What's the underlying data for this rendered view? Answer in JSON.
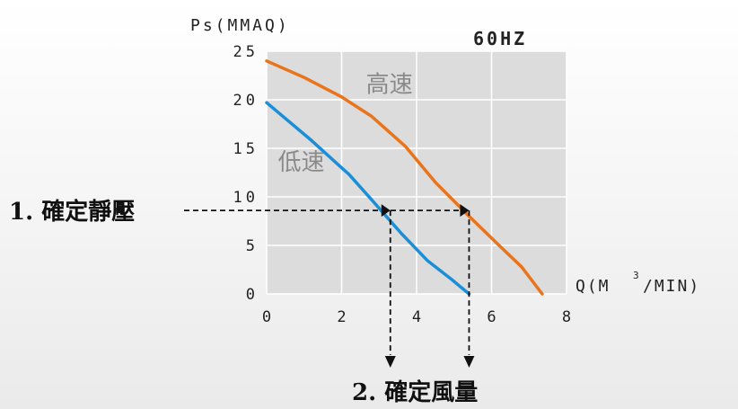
{
  "chart_data": {
    "type": "line",
    "ylabel": "Ps(MMAQ)",
    "xlabel": "Q(M³/MIN)",
    "xlabel_base": "Q(M",
    "xlabel_sup": "3",
    "xlabel_tail": "/MIN)",
    "frequency": "60HZ",
    "xlim": [
      0,
      8
    ],
    "ylim": [
      0,
      25
    ],
    "x_ticks": [
      "0",
      "2",
      "4",
      "6",
      "8"
    ],
    "y_ticks": [
      "0",
      "5",
      "10",
      "15",
      "20",
      "25"
    ],
    "grid": true,
    "series": [
      {
        "name": "高速",
        "color": "#e8741c",
        "points": [
          [
            0,
            24
          ],
          [
            1,
            22.3
          ],
          [
            2,
            20.3
          ],
          [
            2.8,
            18.3
          ],
          [
            3.7,
            15.2
          ],
          [
            4.5,
            11.5
          ],
          [
            5.4,
            8
          ],
          [
            6.2,
            5
          ],
          [
            6.8,
            2.8
          ],
          [
            7.35,
            0
          ]
        ]
      },
      {
        "name": "低速",
        "color": "#1a8fd8",
        "points": [
          [
            0,
            19.7
          ],
          [
            1.2,
            15.8
          ],
          [
            2.2,
            12.3
          ],
          [
            2.8,
            9.7
          ],
          [
            3.6,
            6.2
          ],
          [
            4.3,
            3.4
          ],
          [
            4.9,
            1.6
          ],
          [
            5.4,
            0
          ]
        ]
      }
    ],
    "annotations": {
      "static_pressure_label": "1. 確定靜壓",
      "airflow_label": "2. 確定風量",
      "static_pressure_value": 8.6,
      "airflow_values": [
        3.3,
        5.4
      ]
    }
  }
}
